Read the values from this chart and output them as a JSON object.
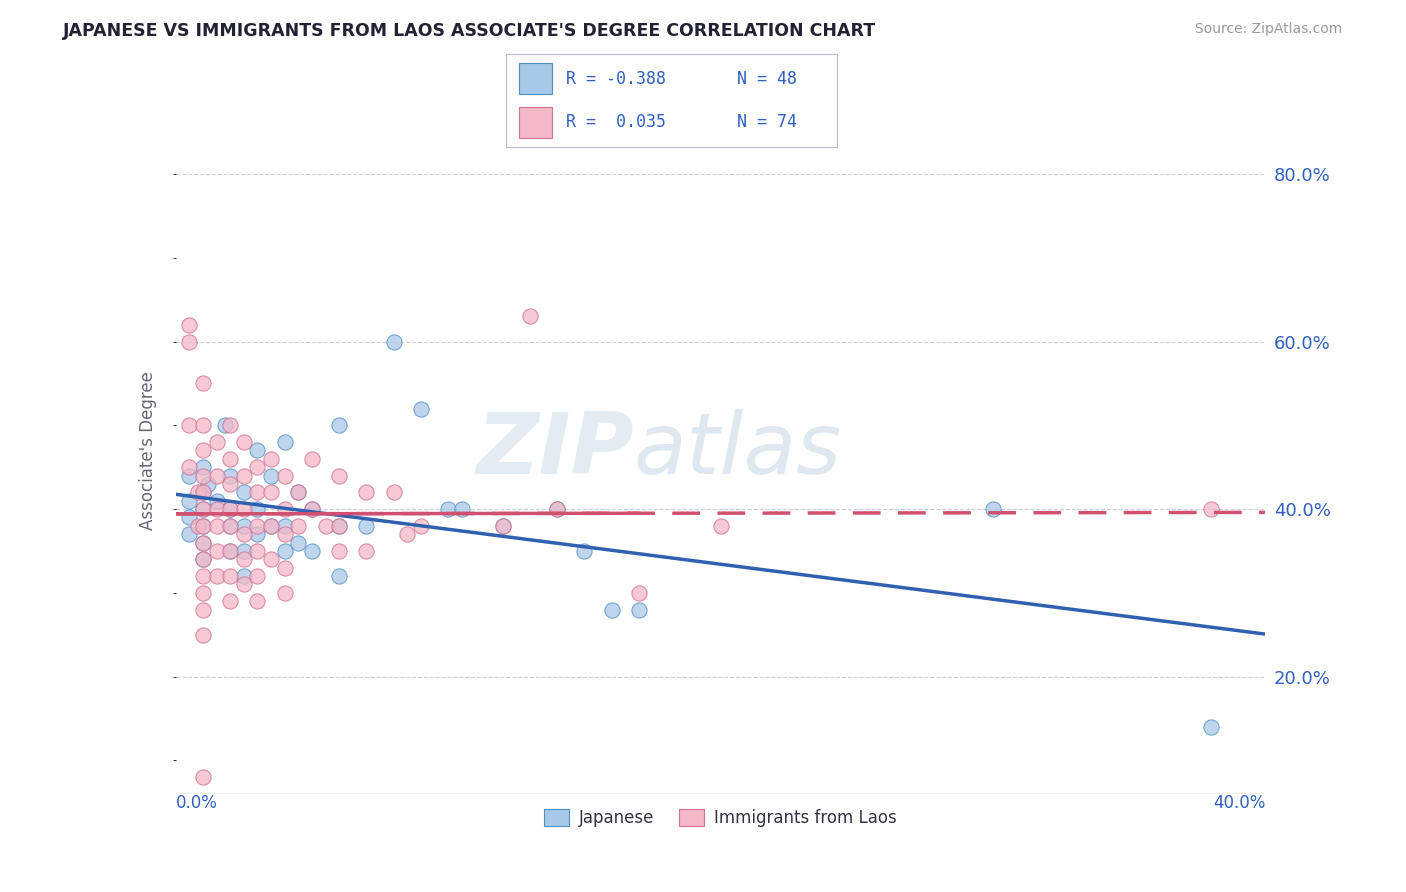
{
  "title": "JAPANESE VS IMMIGRANTS FROM LAOS ASSOCIATE'S DEGREE CORRELATION CHART",
  "source": "Source: ZipAtlas.com",
  "ylabel": "Associate's Degree",
  "right_yticks": [
    "20.0%",
    "40.0%",
    "60.0%",
    "80.0%"
  ],
  "right_ytick_vals": [
    0.2,
    0.4,
    0.6,
    0.8
  ],
  "xlim": [
    0.0,
    0.4
  ],
  "ylim": [
    0.06,
    0.88
  ],
  "watermark": "ZIPatlas",
  "blue_fill": "#a8c8e8",
  "pink_fill": "#f4b8c8",
  "blue_edge": "#5090c0",
  "pink_edge": "#d07090",
  "blue_line": "#3060b0",
  "pink_line": "#d05070",
  "text_blue": "#3060c0",
  "text_dark": "#333344",
  "grid_color": "#ccccdd",
  "japanese_scatter": [
    [
      0.005,
      0.44
    ],
    [
      0.005,
      0.41
    ],
    [
      0.005,
      0.39
    ],
    [
      0.005,
      0.37
    ],
    [
      0.01,
      0.45
    ],
    [
      0.01,
      0.42
    ],
    [
      0.01,
      0.4
    ],
    [
      0.01,
      0.38
    ],
    [
      0.01,
      0.36
    ],
    [
      0.01,
      0.34
    ],
    [
      0.012,
      0.43
    ],
    [
      0.015,
      0.41
    ],
    [
      0.018,
      0.5
    ],
    [
      0.02,
      0.44
    ],
    [
      0.02,
      0.4
    ],
    [
      0.02,
      0.38
    ],
    [
      0.02,
      0.35
    ],
    [
      0.025,
      0.42
    ],
    [
      0.025,
      0.38
    ],
    [
      0.025,
      0.35
    ],
    [
      0.025,
      0.32
    ],
    [
      0.03,
      0.47
    ],
    [
      0.03,
      0.4
    ],
    [
      0.03,
      0.37
    ],
    [
      0.035,
      0.44
    ],
    [
      0.035,
      0.38
    ],
    [
      0.04,
      0.48
    ],
    [
      0.04,
      0.38
    ],
    [
      0.04,
      0.35
    ],
    [
      0.045,
      0.42
    ],
    [
      0.045,
      0.36
    ],
    [
      0.05,
      0.4
    ],
    [
      0.05,
      0.35
    ],
    [
      0.06,
      0.5
    ],
    [
      0.06,
      0.38
    ],
    [
      0.06,
      0.32
    ],
    [
      0.07,
      0.38
    ],
    [
      0.08,
      0.6
    ],
    [
      0.09,
      0.52
    ],
    [
      0.1,
      0.4
    ],
    [
      0.105,
      0.4
    ],
    [
      0.12,
      0.38
    ],
    [
      0.14,
      0.4
    ],
    [
      0.15,
      0.35
    ],
    [
      0.16,
      0.28
    ],
    [
      0.17,
      0.28
    ],
    [
      0.3,
      0.4
    ],
    [
      0.38,
      0.14
    ]
  ],
  "laos_scatter": [
    [
      0.005,
      0.62
    ],
    [
      0.005,
      0.6
    ],
    [
      0.005,
      0.5
    ],
    [
      0.005,
      0.45
    ],
    [
      0.008,
      0.42
    ],
    [
      0.008,
      0.38
    ],
    [
      0.01,
      0.55
    ],
    [
      0.01,
      0.5
    ],
    [
      0.01,
      0.47
    ],
    [
      0.01,
      0.44
    ],
    [
      0.01,
      0.42
    ],
    [
      0.01,
      0.4
    ],
    [
      0.01,
      0.38
    ],
    [
      0.01,
      0.36
    ],
    [
      0.01,
      0.34
    ],
    [
      0.01,
      0.32
    ],
    [
      0.01,
      0.3
    ],
    [
      0.01,
      0.28
    ],
    [
      0.01,
      0.25
    ],
    [
      0.01,
      0.08
    ],
    [
      0.015,
      0.48
    ],
    [
      0.015,
      0.44
    ],
    [
      0.015,
      0.4
    ],
    [
      0.015,
      0.38
    ],
    [
      0.015,
      0.35
    ],
    [
      0.015,
      0.32
    ],
    [
      0.02,
      0.5
    ],
    [
      0.02,
      0.46
    ],
    [
      0.02,
      0.43
    ],
    [
      0.02,
      0.4
    ],
    [
      0.02,
      0.38
    ],
    [
      0.02,
      0.35
    ],
    [
      0.02,
      0.32
    ],
    [
      0.02,
      0.29
    ],
    [
      0.025,
      0.48
    ],
    [
      0.025,
      0.44
    ],
    [
      0.025,
      0.4
    ],
    [
      0.025,
      0.37
    ],
    [
      0.025,
      0.34
    ],
    [
      0.025,
      0.31
    ],
    [
      0.03,
      0.45
    ],
    [
      0.03,
      0.42
    ],
    [
      0.03,
      0.38
    ],
    [
      0.03,
      0.35
    ],
    [
      0.03,
      0.32
    ],
    [
      0.03,
      0.29
    ],
    [
      0.035,
      0.46
    ],
    [
      0.035,
      0.42
    ],
    [
      0.035,
      0.38
    ],
    [
      0.035,
      0.34
    ],
    [
      0.04,
      0.44
    ],
    [
      0.04,
      0.4
    ],
    [
      0.04,
      0.37
    ],
    [
      0.04,
      0.33
    ],
    [
      0.04,
      0.3
    ],
    [
      0.045,
      0.42
    ],
    [
      0.045,
      0.38
    ],
    [
      0.05,
      0.46
    ],
    [
      0.05,
      0.4
    ],
    [
      0.055,
      0.38
    ],
    [
      0.06,
      0.44
    ],
    [
      0.06,
      0.38
    ],
    [
      0.06,
      0.35
    ],
    [
      0.07,
      0.42
    ],
    [
      0.07,
      0.35
    ],
    [
      0.08,
      0.42
    ],
    [
      0.085,
      0.37
    ],
    [
      0.09,
      0.38
    ],
    [
      0.12,
      0.38
    ],
    [
      0.13,
      0.63
    ],
    [
      0.14,
      0.4
    ],
    [
      0.17,
      0.3
    ],
    [
      0.2,
      0.38
    ],
    [
      0.38,
      0.4
    ]
  ]
}
